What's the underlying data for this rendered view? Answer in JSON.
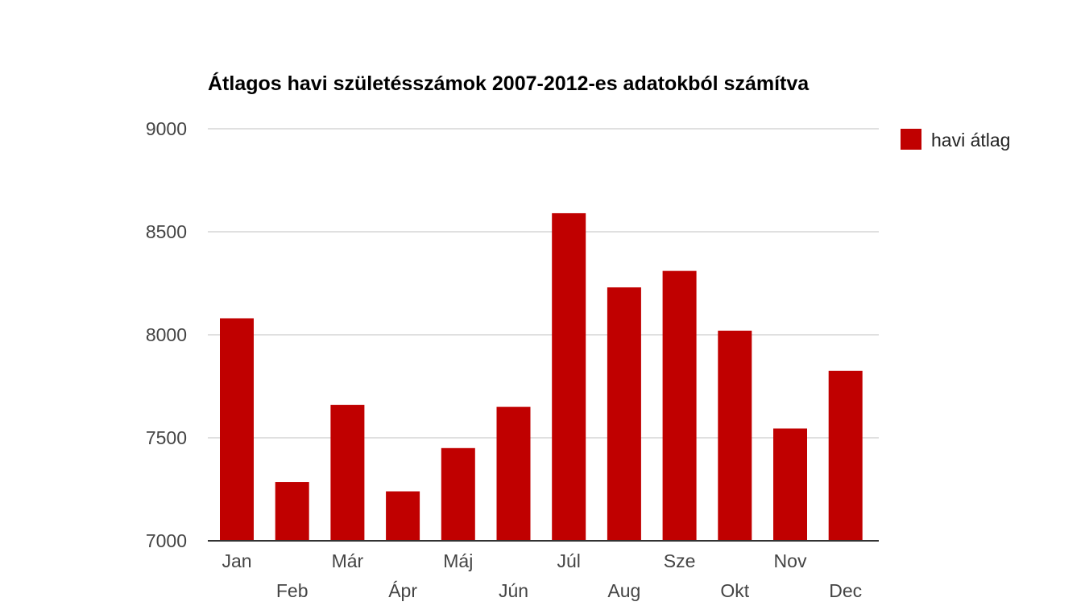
{
  "chart_data": {
    "type": "bar",
    "title": "Átlagos havi születésszámok 2007-2012-es adatokból számítva",
    "xlabel": "",
    "ylabel": "",
    "categories": [
      "Jan",
      "Feb",
      "Már",
      "Ápr",
      "Máj",
      "Jún",
      "Júl",
      "Aug",
      "Sze",
      "Okt",
      "Nov",
      "Dec"
    ],
    "series": [
      {
        "name": "havi átlag",
        "color": "#c00000",
        "values": [
          8080,
          7285,
          7660,
          7240,
          7450,
          7650,
          8590,
          8230,
          8310,
          8020,
          7545,
          7825
        ]
      }
    ],
    "ylim": [
      7000,
      9000
    ],
    "yticks": [
      "7000",
      "7500",
      "8000",
      "8500",
      "9000"
    ],
    "grid": true,
    "legend": "right",
    "label_layout": "staggered"
  }
}
